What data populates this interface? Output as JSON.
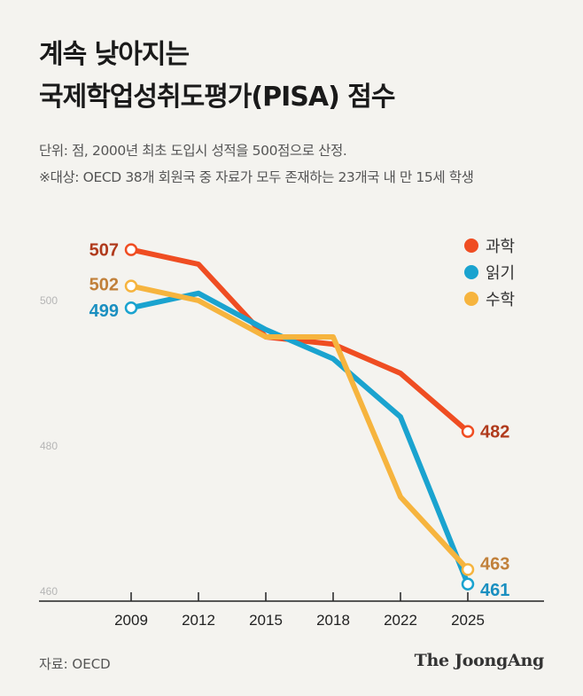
{
  "title": {
    "line1": "계속 낮아지는",
    "line2": "국제학업성취도평가(PISA) 점수"
  },
  "subtitle": {
    "line1": "단위: 점, 2000년 최초 도입시 성적을 500점으로 산정.",
    "line2": "※대상: OECD 38개 회원국 중 자료가 모두 존재하는 23개국 내 만 15세 학생"
  },
  "legend": [
    {
      "label": "과학",
      "color": "#ef4d22"
    },
    {
      "label": "읽기",
      "color": "#1aa3cf"
    },
    {
      "label": "수학",
      "color": "#f6b43e"
    }
  ],
  "source": "자료: OECD",
  "brand": "The JoongAng",
  "chart_data": {
    "type": "line",
    "x": [
      "2009",
      "2012",
      "2015",
      "2018",
      "2022",
      "2025"
    ],
    "y_ticks": [
      460,
      480,
      500
    ],
    "ylim": [
      459,
      506
    ],
    "series": [
      {
        "name": "과학",
        "color": "#ef4d22",
        "label_color": "#b03a1c",
        "values": [
          507,
          505,
          495,
          494,
          490,
          482
        ],
        "start_label": "507",
        "end_label": "482"
      },
      {
        "name": "읽기",
        "color": "#1aa3cf",
        "label_color": "#1a8fc0",
        "values": [
          499,
          501,
          496,
          492,
          484,
          461
        ],
        "start_label": "499",
        "end_label": "461"
      },
      {
        "name": "수학",
        "color": "#f6b43e",
        "label_color": "#c1803a",
        "values": [
          502,
          500,
          495,
          495,
          473,
          463
        ],
        "start_label": "502",
        "end_label": "463"
      }
    ]
  }
}
